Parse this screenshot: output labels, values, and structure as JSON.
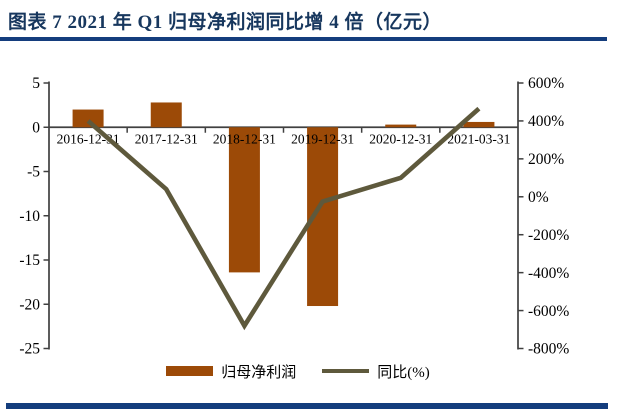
{
  "colors": {
    "title_navy": "#17375E",
    "rule_navy": "#143D7D",
    "bar_brown": "#9C4A07",
    "line_olive": "#5E593C",
    "axis_gray": "#404040",
    "text_black": "#000000"
  },
  "chart_data": {
    "type": "combo-bar-line",
    "title": "图表 7  2021 年 Q1 归母净利润同比增 4 倍（亿元）",
    "categories": [
      "2016-12-31",
      "2017-12-31",
      "2018-12-31",
      "2019-12-31",
      "2020-12-31",
      "2021-03-31"
    ],
    "series": [
      {
        "name": "归母净利润",
        "type": "bar",
        "axis": "left",
        "unit": "亿元",
        "color": "#9C4A07",
        "values": [
          2.0,
          2.8,
          -16.4,
          -20.2,
          0.3,
          0.6
        ]
      },
      {
        "name": "同比(%)",
        "type": "line",
        "axis": "right",
        "unit": "%",
        "color": "#5E593C",
        "values": [
          400,
          40,
          -680,
          -25,
          100,
          465
        ]
      }
    ],
    "left_axis": {
      "min": -25,
      "max": 5,
      "step": 5,
      "tick_labels": [
        "5",
        "0",
        "-5",
        "-10",
        "-15",
        "-20",
        "-25"
      ]
    },
    "right_axis": {
      "min": -800,
      "max": 600,
      "step": 200,
      "tick_labels": [
        "600%",
        "400%",
        "200%",
        "0%",
        "-200%",
        "-400%",
        "-600%",
        "-800%"
      ]
    },
    "grid": false,
    "legend_position": "bottom"
  }
}
